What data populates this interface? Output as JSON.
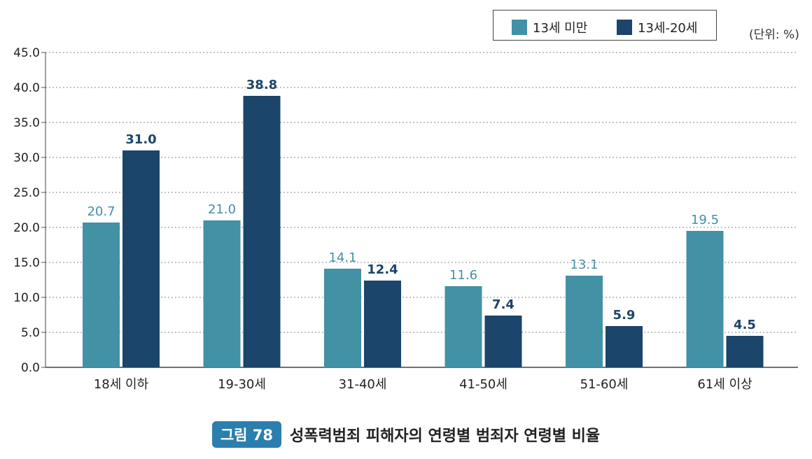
{
  "legend": {
    "items": [
      "13세 미만",
      "13세-20세"
    ]
  },
  "unit": "(단위: %)",
  "caption": {
    "badge": "그림 78",
    "title": "성폭력범죄 피해자의 연령별 범죄자 연령별 비율"
  },
  "colors": {
    "series1": "#4391a5",
    "series2": "#1b456a",
    "badge": "#2b7fae"
  },
  "chart_data": {
    "type": "bar",
    "categories": [
      "18세 이하",
      "19-30세",
      "31-40세",
      "41-50세",
      "51-60세",
      "61세 이상"
    ],
    "series": [
      {
        "name": "13세 미만",
        "values": [
          20.7,
          21.0,
          14.1,
          11.6,
          13.1,
          19.5
        ],
        "color": "#4391a5"
      },
      {
        "name": "13세-20세",
        "values": [
          31.0,
          38.8,
          12.4,
          7.4,
          5.9,
          4.5
        ],
        "color": "#1b456a"
      }
    ],
    "ylim": [
      0,
      45
    ],
    "yticks": [
      "0.0",
      "5.0",
      "10.0",
      "15.0",
      "20.0",
      "25.0",
      "30.0",
      "35.0",
      "40.0",
      "45.0"
    ],
    "grid": true,
    "legend_position": "top-right"
  }
}
